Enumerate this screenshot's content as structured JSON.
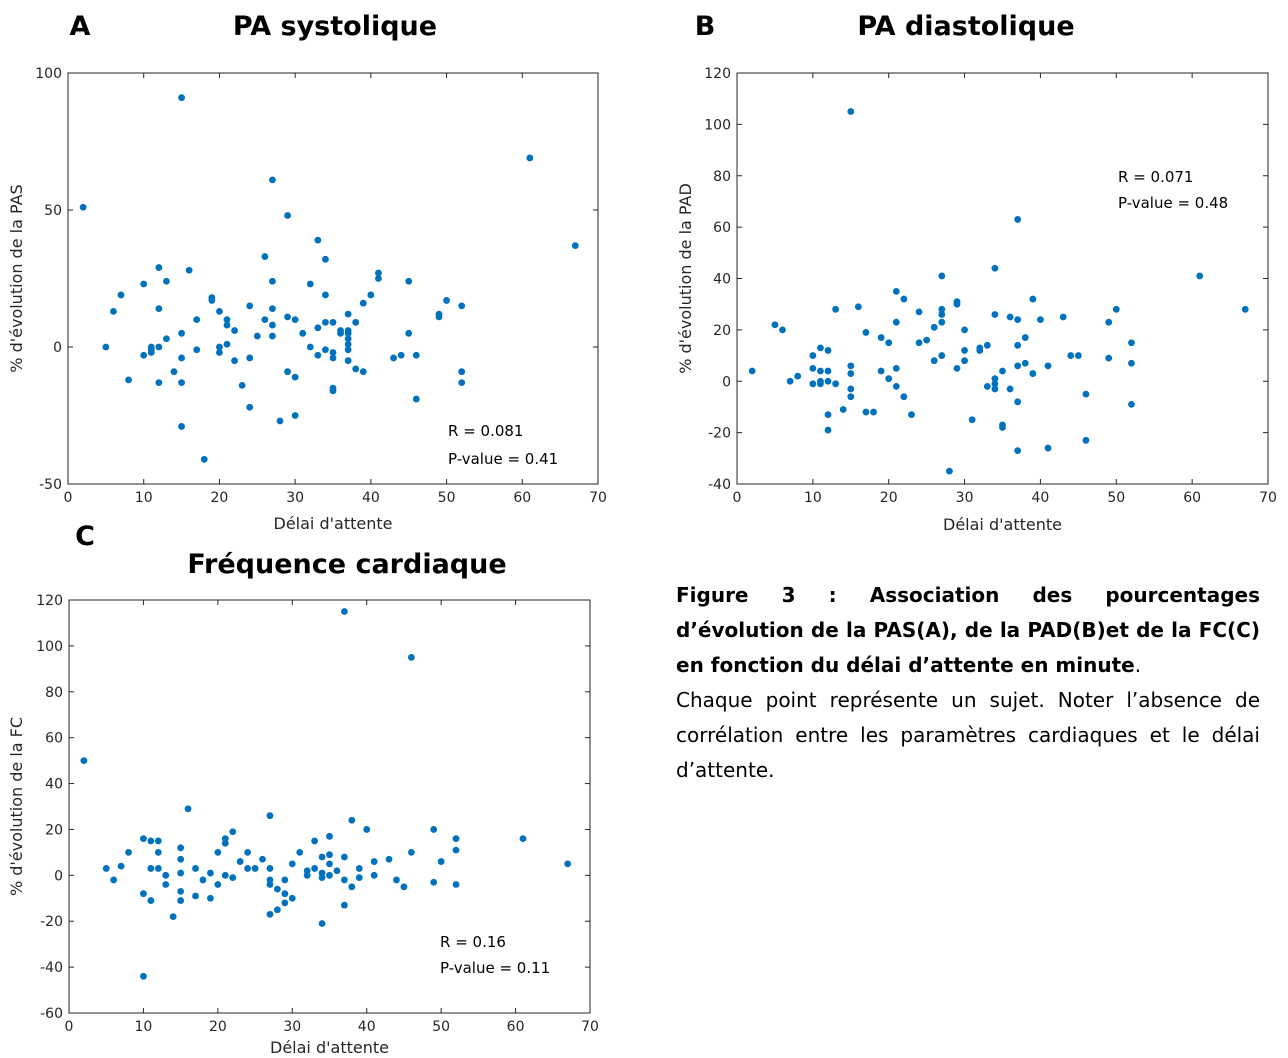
{
  "caption": {
    "bold": "Figure 3 : Association des pourcentages d’évolution de la PAS(A), de la PAD(B)et de la FC(C) en fonction du délai d’attente en minute",
    "after_bold": ".",
    "body": "Chaque point représente un sujet. Noter l’absence de corrélation entre les paramètres cardiaques et le délai d’attente."
  },
  "chart_data": [
    {
      "panel": "A",
      "type": "scatter",
      "title": "PA systolique",
      "xlabel": "Délai d'attente",
      "ylabel": "% d'évolution de la PAS",
      "xlim": [
        0,
        70
      ],
      "ylim": [
        -50,
        100
      ],
      "xticks": [
        0,
        10,
        20,
        30,
        40,
        50,
        60,
        70
      ],
      "yticks": [
        -50,
        0,
        50,
        100
      ],
      "stats": [
        "R = 0.081",
        "P-value = 0.41"
      ],
      "stats_placement": "bottom-right",
      "color": "#0072BD",
      "x": [
        2,
        5,
        6,
        7,
        8,
        10,
        10,
        11,
        11,
        11,
        12,
        12,
        12,
        12,
        13,
        13,
        14,
        15,
        15,
        15,
        15,
        15,
        16,
        17,
        17,
        18,
        19,
        19,
        20,
        20,
        20,
        21,
        21,
        21,
        22,
        22,
        23,
        24,
        24,
        24,
        25,
        26,
        26,
        27,
        27,
        27,
        27,
        27,
        28,
        29,
        29,
        29,
        30,
        30,
        30,
        31,
        32,
        32,
        33,
        33,
        33,
        34,
        34,
        34,
        34,
        35,
        35,
        35,
        35,
        35,
        36,
        36,
        37,
        37,
        37,
        37,
        37,
        37,
        37,
        38,
        38,
        39,
        39,
        40,
        41,
        41,
        43,
        44,
        45,
        45,
        46,
        46,
        49,
        49,
        50,
        52,
        52,
        52,
        61,
        67
      ],
      "y": [
        51,
        0,
        13,
        19,
        -12,
        23,
        -3,
        -1,
        0,
        -2,
        29,
        14,
        -13,
        0,
        24,
        3,
        -9,
        91,
        5,
        -4,
        -13,
        -29,
        28,
        10,
        -1,
        -41,
        17,
        18,
        0,
        -2,
        13,
        8,
        10,
        1,
        -5,
        6,
        -14,
        -22,
        -4,
        15,
        4,
        33,
        10,
        61,
        24,
        14,
        8,
        4,
        -27,
        48,
        11,
        -9,
        10,
        -11,
        -25,
        5,
        0,
        23,
        39,
        -3,
        7,
        32,
        19,
        9,
        -1,
        -15,
        -16,
        9,
        -4,
        -2,
        5,
        6,
        12,
        6,
        5,
        3,
        1,
        -1,
        -5,
        -8,
        9,
        -9,
        16,
        19,
        27,
        25,
        -4,
        -3,
        5,
        24,
        -3,
        -19,
        12,
        11,
        17,
        15,
        -9,
        -13,
        69,
        37
      ]
    },
    {
      "panel": "B",
      "type": "scatter",
      "title": "PA diastolique",
      "xlabel": "Délai d'attente",
      "ylabel": "% d'évolution de la PAD",
      "xlim": [
        0,
        70
      ],
      "ylim": [
        -40,
        120
      ],
      "xticks": [
        0,
        10,
        20,
        30,
        40,
        50,
        60,
        70
      ],
      "yticks": [
        -40,
        -20,
        0,
        20,
        40,
        60,
        80,
        100,
        120
      ],
      "stats": [
        "R = 0.071",
        "P-value = 0.48"
      ],
      "stats_placement": "top-right",
      "color": "#0072BD",
      "x": [
        2,
        5,
        6,
        7,
        8,
        10,
        10,
        10,
        11,
        11,
        11,
        11,
        12,
        12,
        12,
        12,
        12,
        13,
        13,
        14,
        15,
        15,
        15,
        15,
        15,
        16,
        17,
        17,
        18,
        19,
        19,
        20,
        20,
        21,
        21,
        21,
        21,
        22,
        22,
        23,
        24,
        24,
        25,
        26,
        26,
        27,
        27,
        27,
        27,
        27,
        28,
        29,
        29,
        29,
        30,
        30,
        30,
        31,
        32,
        32,
        33,
        33,
        34,
        34,
        34,
        34,
        34,
        35,
        35,
        35,
        36,
        36,
        37,
        37,
        37,
        37,
        37,
        37,
        38,
        38,
        39,
        39,
        40,
        41,
        41,
        43,
        44,
        45,
        46,
        46,
        49,
        49,
        50,
        52,
        52,
        52,
        61,
        67
      ],
      "y": [
        4,
        22,
        20,
        0,
        2,
        10,
        5,
        -1,
        13,
        4,
        0,
        -1,
        12,
        4,
        0,
        -13,
        -19,
        28,
        -1,
        -11,
        105,
        6,
        3,
        -3,
        -6,
        29,
        19,
        -12,
        -12,
        17,
        4,
        1,
        15,
        35,
        23,
        5,
        -2,
        32,
        -6,
        -13,
        27,
        15,
        16,
        21,
        8,
        41,
        28,
        26,
        23,
        10,
        -35,
        30,
        31,
        5,
        20,
        12,
        8,
        -15,
        13,
        12,
        14,
        -2,
        44,
        26,
        1,
        -1,
        -3,
        -17,
        -18,
        4,
        -3,
        25,
        63,
        24,
        14,
        6,
        -8,
        -27,
        17,
        7,
        32,
        3,
        24,
        -26,
        6,
        25,
        10,
        10,
        -5,
        -23,
        23,
        9,
        28,
        15,
        7,
        -9,
        41,
        28
      ]
    },
    {
      "panel": "C",
      "type": "scatter",
      "title": "Fréquence cardiaque",
      "xlabel": "Délai d'attente",
      "ylabel": "% d'évolution de la FC",
      "xlim": [
        0,
        70
      ],
      "ylim": [
        -60,
        120
      ],
      "xticks": [
        0,
        10,
        20,
        30,
        40,
        50,
        60,
        70
      ],
      "yticks": [
        -60,
        -40,
        -20,
        0,
        20,
        40,
        60,
        80,
        100,
        120
      ],
      "stats": [
        "R = 0.16",
        "P-value = 0.11"
      ],
      "stats_placement": "bottom-right",
      "color": "#0072BD",
      "x": [
        2,
        5,
        6,
        7,
        8,
        10,
        10,
        10,
        11,
        11,
        11,
        12,
        12,
        12,
        13,
        13,
        14,
        15,
        15,
        15,
        15,
        15,
        16,
        17,
        17,
        18,
        19,
        19,
        20,
        20,
        21,
        21,
        21,
        22,
        22,
        23,
        24,
        24,
        25,
        26,
        27,
        27,
        27,
        27,
        27,
        28,
        28,
        29,
        29,
        29,
        30,
        30,
        31,
        32,
        32,
        33,
        33,
        34,
        34,
        34,
        34,
        35,
        35,
        35,
        35,
        36,
        37,
        37,
        37,
        37,
        38,
        38,
        39,
        39,
        40,
        41,
        41,
        43,
        44,
        45,
        46,
        46,
        49,
        49,
        50,
        52,
        52,
        52,
        61,
        67
      ],
      "y": [
        50,
        3,
        -2,
        4,
        10,
        16,
        -8,
        -44,
        15,
        3,
        -11,
        15,
        10,
        3,
        0,
        -4,
        -18,
        12,
        7,
        1,
        -7,
        -11,
        29,
        3,
        -9,
        -2,
        -10,
        1,
        10,
        -4,
        14,
        16,
        0,
        19,
        -1,
        6,
        3,
        10,
        3,
        7,
        26,
        3,
        -2,
        -4,
        -17,
        -15,
        -6,
        -8,
        -2,
        -12,
        5,
        -10,
        10,
        0,
        2,
        15,
        3,
        1,
        8,
        -21,
        -1,
        17,
        9,
        5,
        0,
        2,
        115,
        8,
        -2,
        -13,
        24,
        -5,
        3,
        -1,
        20,
        6,
        0,
        7,
        -2,
        -5,
        95,
        10,
        20,
        -3,
        6,
        16,
        11,
        -4,
        16,
        5
      ]
    }
  ]
}
